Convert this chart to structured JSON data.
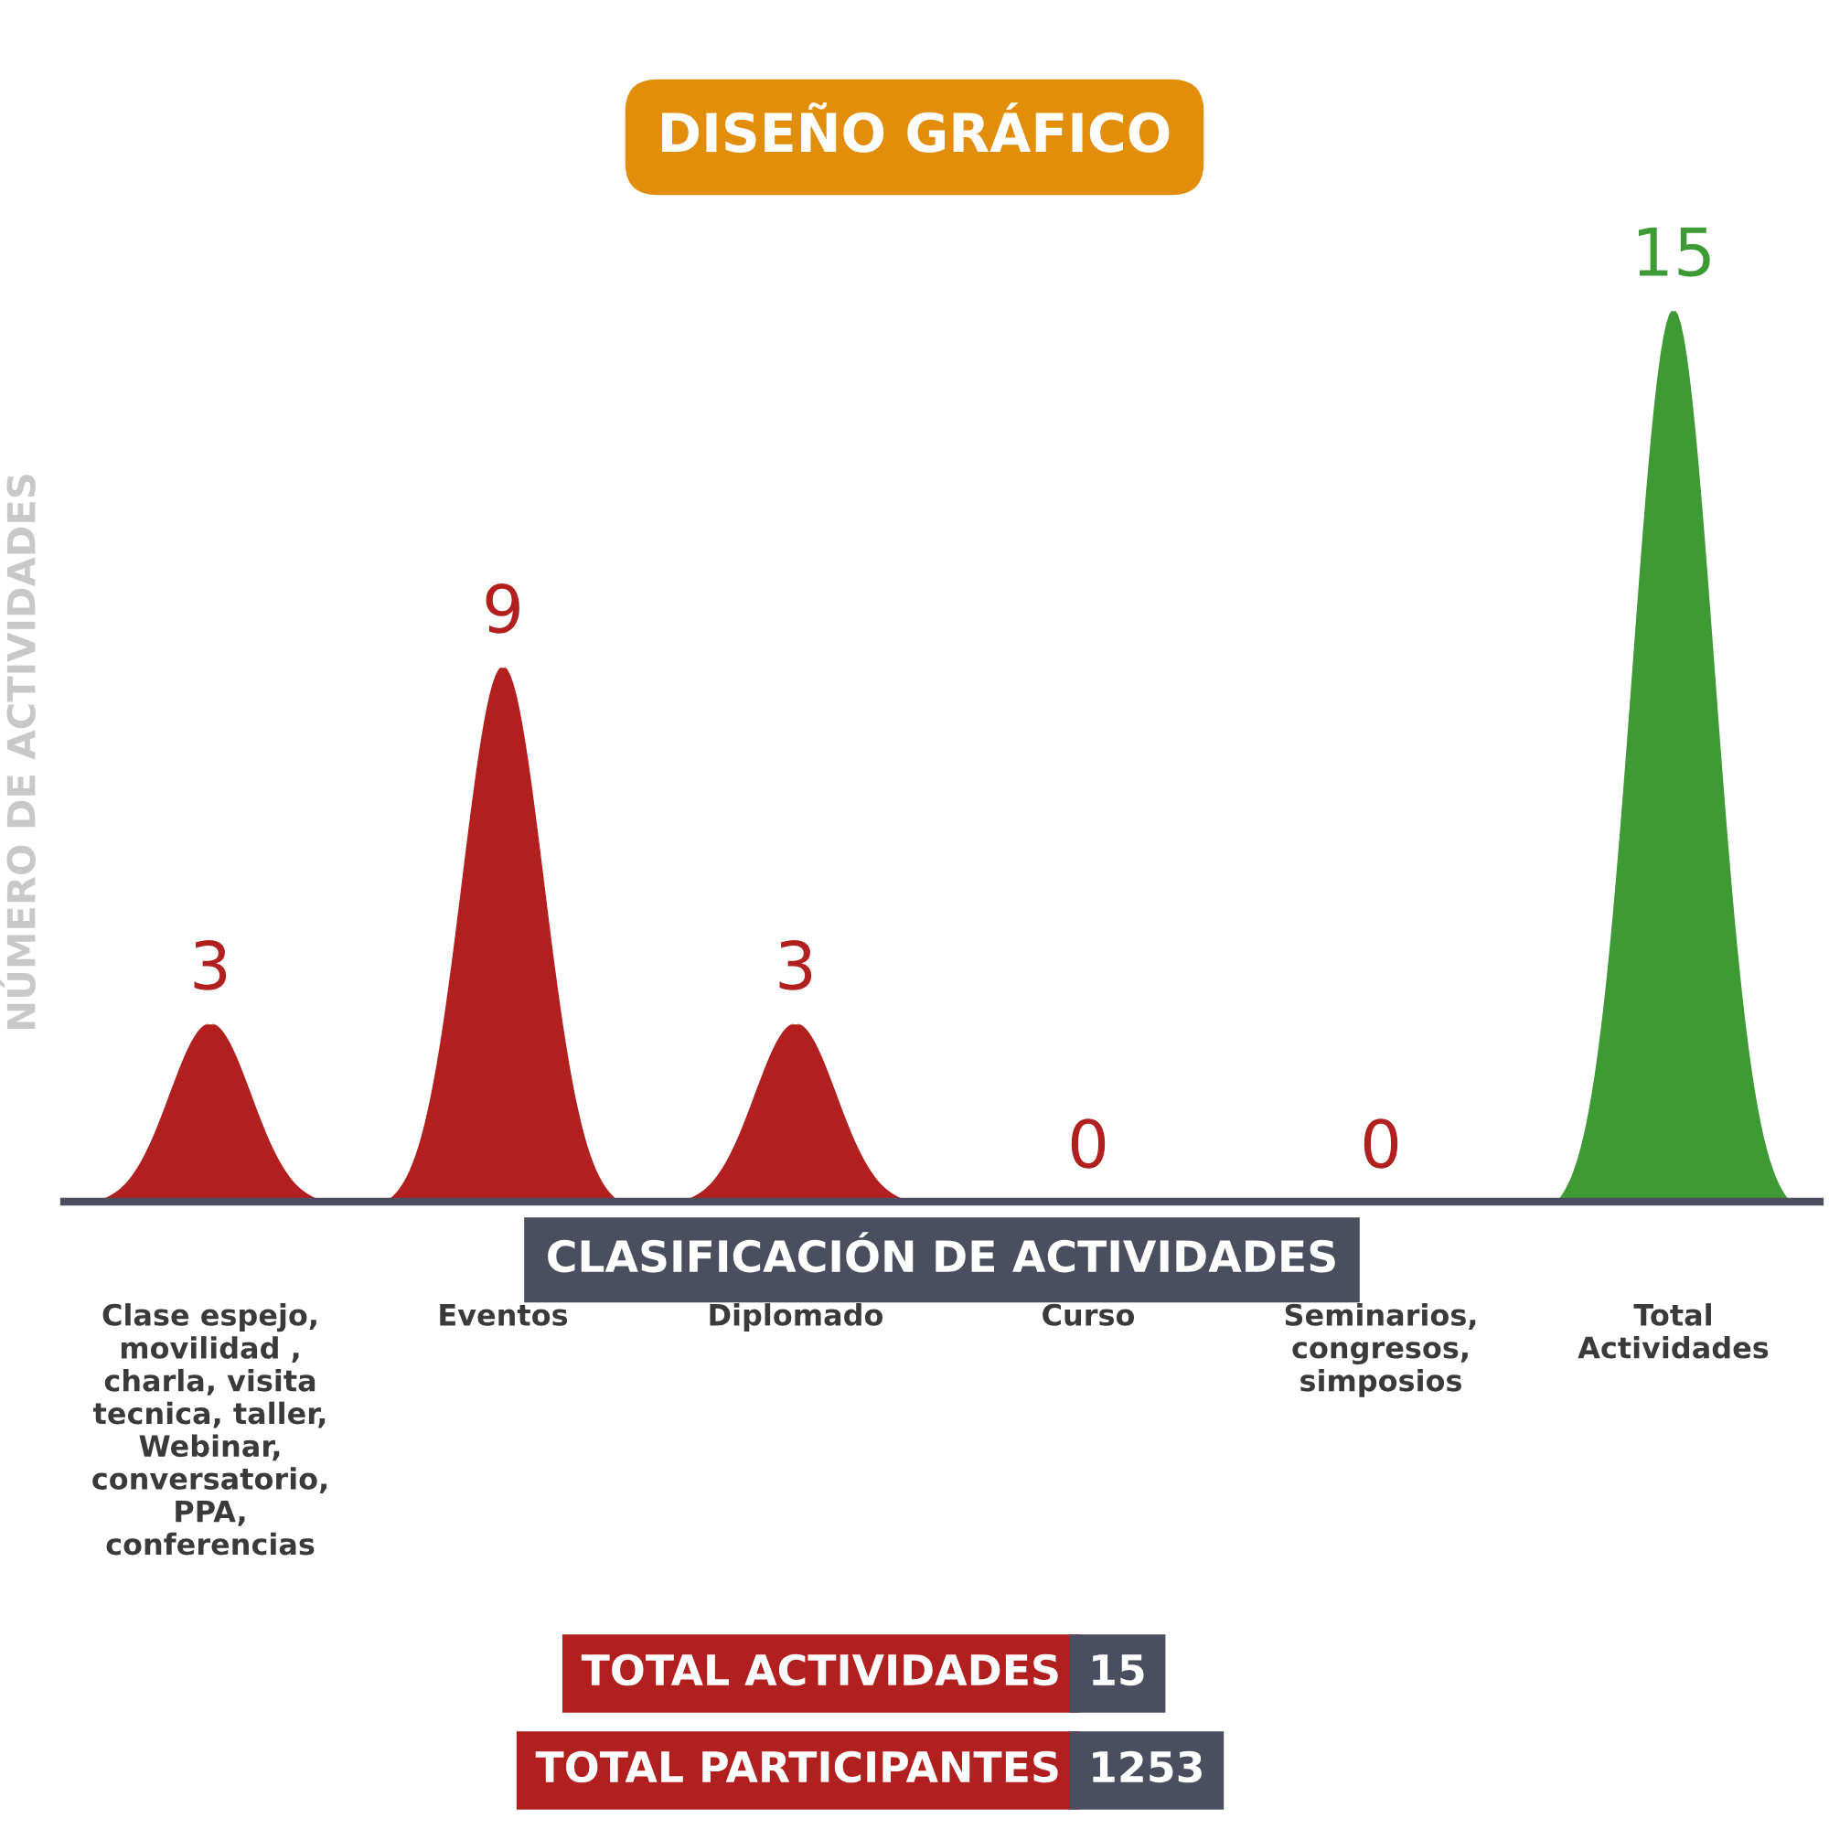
{
  "chart_data": {
    "type": "bar",
    "title": "DISEÑO GRÁFICO",
    "xlabel": "CLASIFICACIÓN DE ACTIVIDADES",
    "ylabel": "NÚMERO DE ACTIVIDADES",
    "categories": [
      "Clase espejo,\nmovilidad ,\ncharla, visita\ntecnica, taller,\nWebinar,\nconversatorio,\nPPA,\nconferencias",
      "Eventos",
      "Diplomado",
      "Curso",
      "Seminarios,\ncongresos,\nsimposios",
      "Total\nActividades"
    ],
    "values": [
      3,
      9,
      3,
      0,
      0,
      15
    ],
    "colors": [
      "#b21f1f",
      "#b21f1f",
      "#b21f1f",
      "#b21f1f",
      "#b21f1f",
      "#3d9a34"
    ],
    "data_labels": true,
    "tick_labels": "x",
    "annotations": [
      "TOTAL ACTIVIDADES",
      "15",
      "TOTAL PARTICIPANTES",
      "1253"
    ]
  }
}
